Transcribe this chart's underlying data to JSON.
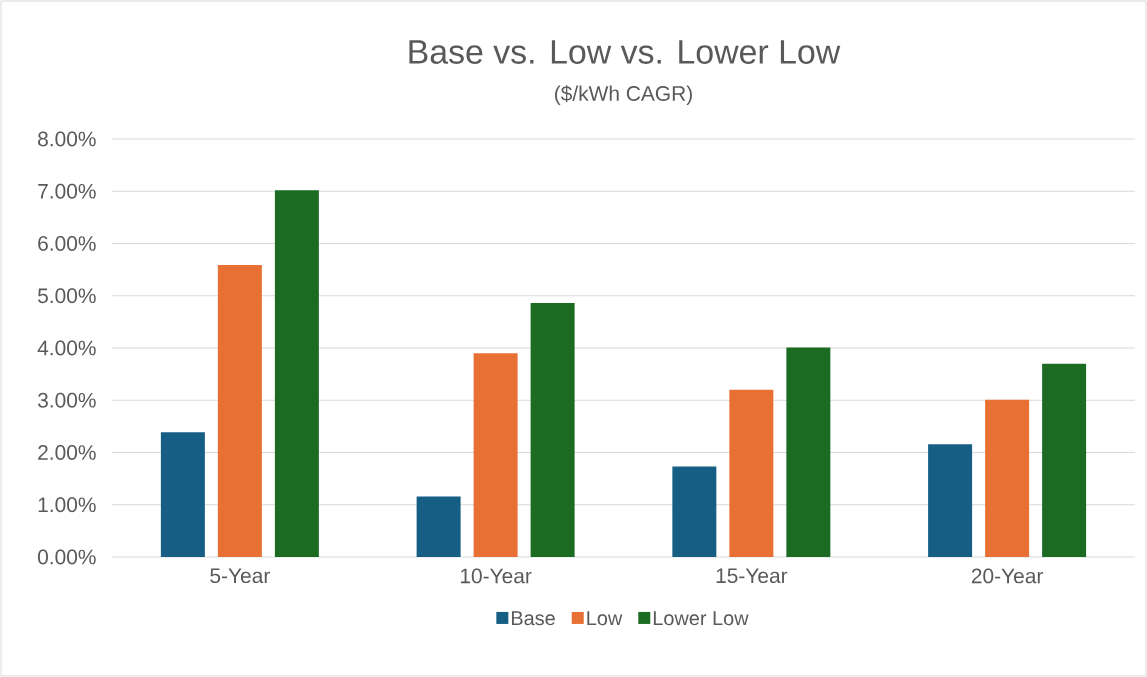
{
  "chart_data": {
    "type": "bar",
    "title": "Base vs. Low vs. Lower Low",
    "subtitle": "($/kWh CAGR)",
    "categories": [
      "5-Year",
      "10-Year",
      "15-Year",
      "20-Year"
    ],
    "series": [
      {
        "name": "Base",
        "color": "#165e84",
        "values": [
          2.39,
          1.16,
          1.73,
          2.16
        ]
      },
      {
        "name": "Low",
        "color": "#e87035",
        "values": [
          5.59,
          3.9,
          3.2,
          3.01
        ]
      },
      {
        "name": "Lower Low",
        "color": "#1b6b23",
        "values": [
          7.02,
          4.86,
          4.01,
          3.7
        ]
      }
    ],
    "ylim": [
      0,
      8
    ],
    "yticks": [
      {
        "value": 0,
        "label": "0.00%"
      },
      {
        "value": 1,
        "label": "1.00%"
      },
      {
        "value": 2,
        "label": "2.00%"
      },
      {
        "value": 3,
        "label": "3.00%"
      },
      {
        "value": 4,
        "label": "4.00%"
      },
      {
        "value": 5,
        "label": "5.00%"
      },
      {
        "value": 6,
        "label": "6.00%"
      },
      {
        "value": 7,
        "label": "7.00%"
      },
      {
        "value": 8,
        "label": "8.00%"
      }
    ],
    "grid": "y",
    "legend": "bottom"
  }
}
